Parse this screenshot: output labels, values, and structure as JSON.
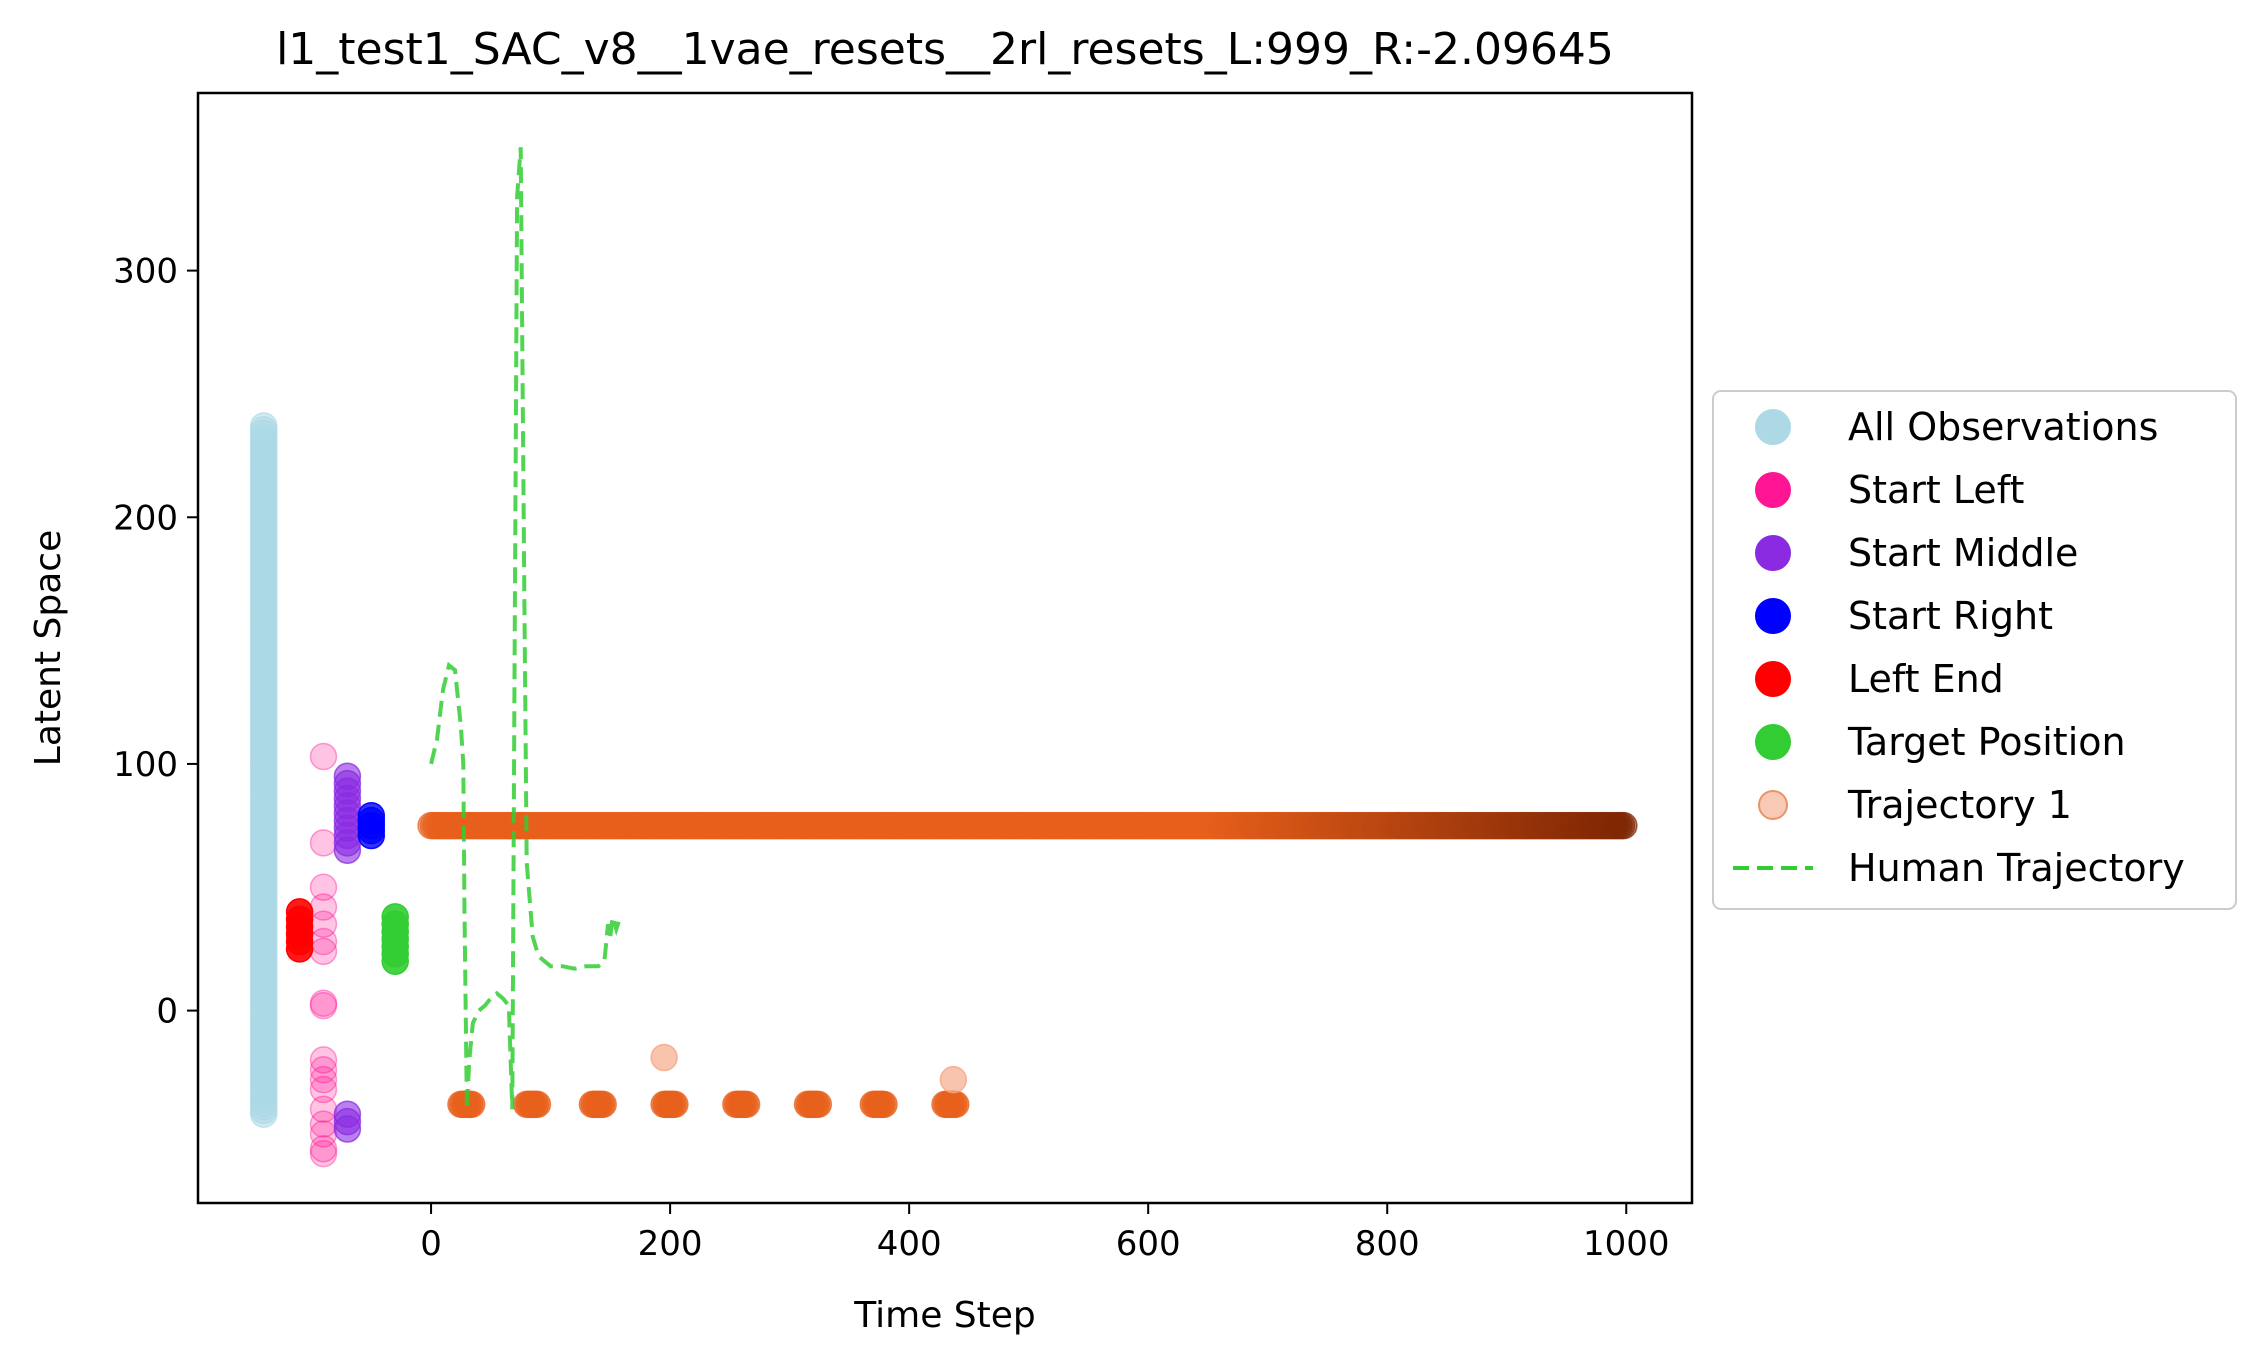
{
  "chart_data": {
    "type": "scatter",
    "title": "l1_test1_SAC_v8__1vae_resets__2rl_resets_L:999_R:-2.09645",
    "xlabel": "Time Step",
    "ylabel": "Latent Space",
    "xlim": [
      -195,
      1055
    ],
    "ylim": [
      -78,
      372
    ],
    "xticks": [
      0,
      200,
      400,
      600,
      800,
      1000
    ],
    "yticks": [
      0,
      100,
      200,
      300
    ],
    "grid": false,
    "legend_placement": "right-outside",
    "series": [
      {
        "name": "All Observations",
        "kind": "points",
        "color": "#add8e6",
        "alpha": 0.55,
        "x_values": [
          -140
        ],
        "y_range": [
          -42,
          238
        ]
      },
      {
        "name": "Start Left",
        "kind": "points",
        "color": "#ff1493",
        "alpha": 0.25,
        "points": [
          [
            -90,
            103
          ],
          [
            -90,
            68
          ],
          [
            -90,
            50
          ],
          [
            -90,
            42
          ],
          [
            -90,
            35
          ],
          [
            -90,
            28
          ],
          [
            -90,
            24
          ],
          [
            -90,
            3
          ],
          [
            -90,
            2
          ],
          [
            -90,
            -20
          ],
          [
            -90,
            -24
          ],
          [
            -90,
            -28
          ],
          [
            -90,
            -32
          ],
          [
            -90,
            -40
          ],
          [
            -90,
            -46
          ],
          [
            -90,
            -50
          ],
          [
            -90,
            -56
          ],
          [
            -90,
            -58
          ]
        ]
      },
      {
        "name": "Start Middle",
        "kind": "points",
        "color": "#8a2be2",
        "alpha": 0.6,
        "points": [
          [
            -70,
            95
          ],
          [
            -70,
            92
          ],
          [
            -70,
            89
          ],
          [
            -70,
            86
          ],
          [
            -70,
            83
          ],
          [
            -70,
            80
          ],
          [
            -70,
            77
          ],
          [
            -70,
            74
          ],
          [
            -70,
            71
          ],
          [
            -70,
            68
          ],
          [
            -70,
            65
          ],
          [
            -70,
            -42
          ],
          [
            -70,
            -45
          ],
          [
            -70,
            -48
          ]
        ]
      },
      {
        "name": "Start Right",
        "kind": "points",
        "color": "#0000ff",
        "alpha": 0.8,
        "points": [
          [
            -50,
            79
          ],
          [
            -50,
            77
          ],
          [
            -50,
            75
          ],
          [
            -50,
            73
          ],
          [
            -50,
            71
          ]
        ]
      },
      {
        "name": "Left End",
        "kind": "points",
        "color": "#ff0000",
        "alpha": 0.9,
        "points": [
          [
            -110,
            40
          ],
          [
            -110,
            37
          ],
          [
            -110,
            34
          ],
          [
            -110,
            31
          ],
          [
            -110,
            28
          ],
          [
            -110,
            25
          ]
        ]
      },
      {
        "name": "Target Position",
        "kind": "points",
        "color": "#32cd32",
        "alpha": 0.9,
        "points": [
          [
            -30,
            38
          ],
          [
            -30,
            35
          ],
          [
            -30,
            32
          ],
          [
            -30,
            29
          ],
          [
            -30,
            26
          ],
          [
            -30,
            23
          ],
          [
            -30,
            20
          ]
        ]
      },
      {
        "name": "Trajectory 1",
        "kind": "points",
        "color": "#f4a582",
        "alpha": 0.65,
        "upper_y": 75,
        "upper_x_range": [
          0,
          999
        ],
        "lower_y": -38,
        "lower_segments": [
          [
            25,
            35
          ],
          [
            80,
            90
          ],
          [
            135,
            145
          ],
          [
            195,
            205
          ],
          [
            255,
            265
          ],
          [
            315,
            325
          ],
          [
            370,
            380
          ],
          [
            430,
            440
          ]
        ],
        "outliers": [
          [
            195,
            -19
          ],
          [
            437,
            -28
          ]
        ]
      },
      {
        "name": "Human Trajectory",
        "kind": "line",
        "color": "#32cd32",
        "style": "dashed",
        "points": [
          [
            0,
            100
          ],
          [
            5,
            110
          ],
          [
            10,
            130
          ],
          [
            15,
            140
          ],
          [
            20,
            138
          ],
          [
            25,
            115
          ],
          [
            27,
            100
          ],
          [
            28,
            40
          ],
          [
            30,
            -40
          ],
          [
            32,
            -20
          ],
          [
            35,
            -5
          ],
          [
            40,
            0
          ],
          [
            45,
            2
          ],
          [
            50,
            5
          ],
          [
            55,
            7
          ],
          [
            60,
            5
          ],
          [
            65,
            2
          ],
          [
            68,
            -40
          ],
          [
            70,
            150
          ],
          [
            72,
            330
          ],
          [
            75,
            350
          ],
          [
            78,
            170
          ],
          [
            80,
            60
          ],
          [
            85,
            30
          ],
          [
            90,
            22
          ],
          [
            100,
            18
          ],
          [
            110,
            18
          ],
          [
            120,
            17
          ],
          [
            130,
            18
          ],
          [
            140,
            18
          ],
          [
            145,
            20
          ],
          [
            148,
            35
          ],
          [
            150,
            30
          ],
          [
            152,
            38
          ],
          [
            155,
            33
          ],
          [
            157,
            36
          ]
        ]
      }
    ]
  }
}
